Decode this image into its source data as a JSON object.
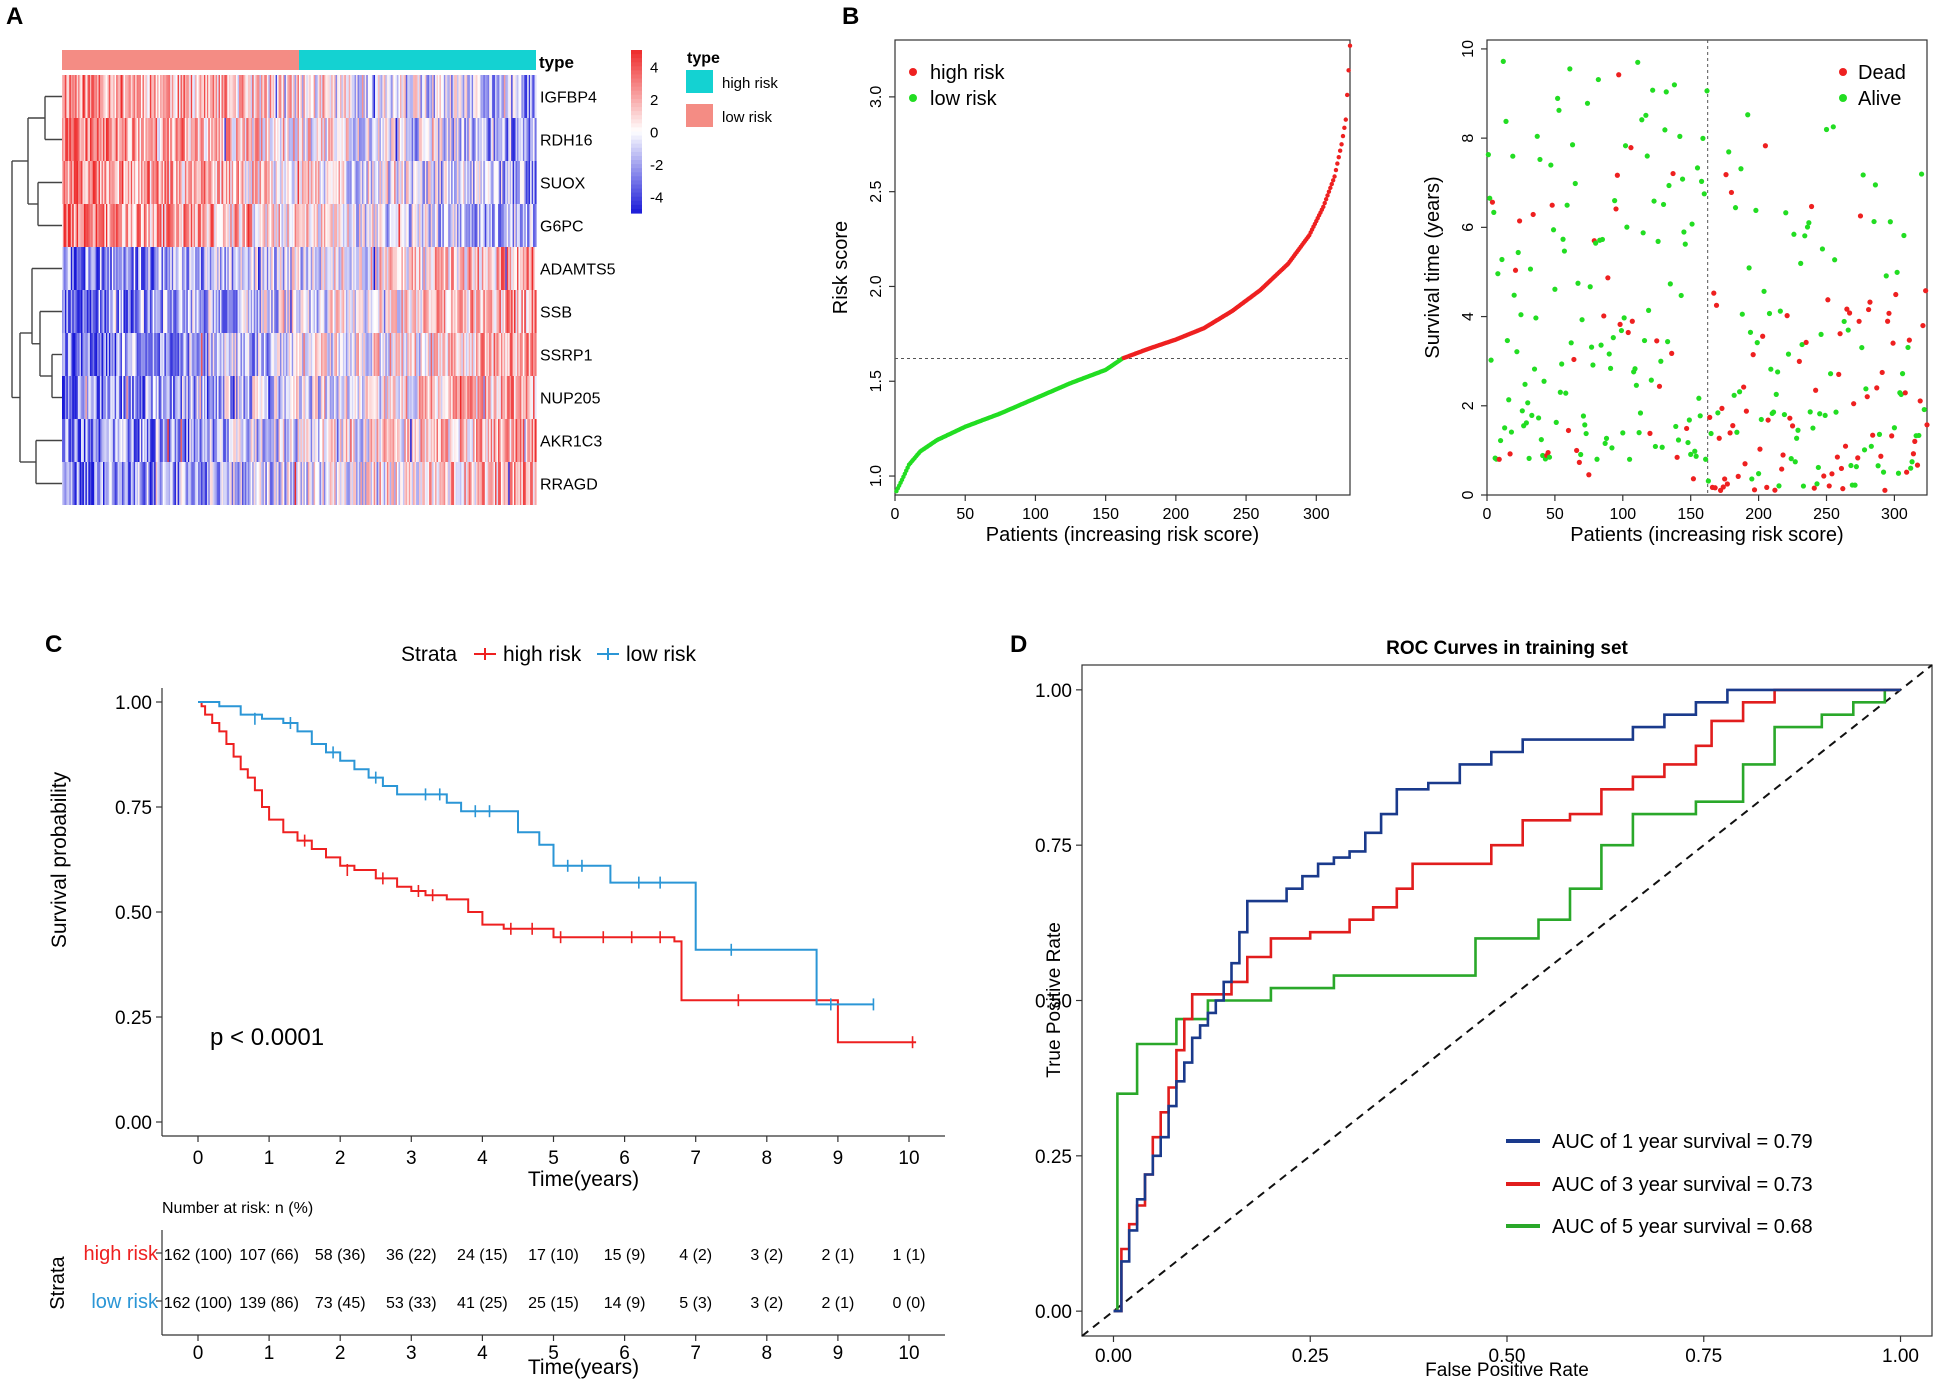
{
  "colors": {
    "high": "#ee2020",
    "low": "#22dd22",
    "kmLow": "#2b96d6",
    "heatHigh": "#ee2a2a",
    "heatLow": "#1a1ad8",
    "typeHigh": "#14d2d2",
    "typeLow": "#f48c84",
    "roc1": "#1a3a8c",
    "roc3": "#e11d1d",
    "roc5": "#2aa82a"
  },
  "chart_data": [
    {
      "panel": "A",
      "type": "heatmap",
      "annotation_label": "type",
      "genes": [
        "IGFBP4",
        "RDH16",
        "SUOX",
        "G6PC",
        "ADAMTS5",
        "SSB",
        "SSRP1",
        "NUP205",
        "AKR1C3",
        "RRAGD"
      ],
      "gene_trend": [
        1,
        1,
        1,
        1,
        -1,
        -1,
        -1,
        -1,
        -1,
        -1
      ],
      "n_low": 162,
      "n_high": 162,
      "colorbar_ticks": [
        "4",
        "2",
        "0",
        "-2",
        "-4"
      ],
      "legend_title": "type",
      "legend_items": [
        "high risk",
        "low risk"
      ]
    },
    {
      "panel": "B1",
      "type": "scatter",
      "legend": [
        "high risk",
        "low risk"
      ],
      "xlabel": "Patients (increasing risk score)",
      "ylabel": "Risk score",
      "xticks": [
        "0",
        "50",
        "100",
        "150",
        "200",
        "250",
        "300"
      ],
      "yticks": [
        "1.0",
        "1.5",
        "2.0",
        "2.5",
        "3.0"
      ],
      "xlim": [
        0,
        324
      ],
      "ylim": [
        0.9,
        3.3
      ],
      "cutoff_index": 162,
      "cutoff_value": 1.62,
      "curve_knots": [
        [
          1,
          0.92
        ],
        [
          5,
          0.98
        ],
        [
          10,
          1.06
        ],
        [
          18,
          1.13
        ],
        [
          30,
          1.19
        ],
        [
          50,
          1.26
        ],
        [
          75,
          1.33
        ],
        [
          100,
          1.41
        ],
        [
          125,
          1.49
        ],
        [
          150,
          1.56
        ],
        [
          162,
          1.62
        ],
        [
          180,
          1.67
        ],
        [
          200,
          1.72
        ],
        [
          220,
          1.78
        ],
        [
          240,
          1.87
        ],
        [
          260,
          1.98
        ],
        [
          280,
          2.12
        ],
        [
          295,
          2.27
        ],
        [
          305,
          2.42
        ],
        [
          313,
          2.58
        ],
        [
          318,
          2.75
        ],
        [
          321,
          2.88
        ],
        [
          324,
          3.27
        ]
      ]
    },
    {
      "panel": "B2",
      "type": "scatter",
      "legend": [
        "Dead",
        "Alive"
      ],
      "xlabel": "Patients (increasing risk score)",
      "ylabel": "Survival time (years)",
      "xticks": [
        "0",
        "50",
        "100",
        "150",
        "200",
        "250",
        "300"
      ],
      "yticks": [
        "0",
        "2",
        "4",
        "6",
        "8",
        "10"
      ],
      "xlim": [
        0,
        324
      ],
      "ylim": [
        0,
        10.2
      ],
      "cutoff_index": 162,
      "dead_ratio_low": 0.2,
      "dead_ratio_high": 0.45
    },
    {
      "panel": "C",
      "type": "line",
      "title": "Strata",
      "legend": [
        "high risk",
        "low risk"
      ],
      "xlabel": "Time(years)",
      "ylabel": "Survival probability",
      "xticks": [
        "0",
        "1",
        "2",
        "3",
        "4",
        "5",
        "6",
        "7",
        "8",
        "9",
        "10"
      ],
      "yticks": [
        "0.00",
        "0.25",
        "0.50",
        "0.75",
        "1.00"
      ],
      "xlim": [
        0,
        10
      ],
      "ylim": [
        0,
        1
      ],
      "pvalue": "p < 0.0001",
      "series": [
        {
          "name": "high risk",
          "steps": [
            [
              0,
              1.0
            ],
            [
              0.05,
              0.99
            ],
            [
              0.1,
              0.97
            ],
            [
              0.2,
              0.95
            ],
            [
              0.3,
              0.93
            ],
            [
              0.4,
              0.9
            ],
            [
              0.5,
              0.87
            ],
            [
              0.6,
              0.84
            ],
            [
              0.7,
              0.82
            ],
            [
              0.8,
              0.79
            ],
            [
              0.9,
              0.75
            ],
            [
              1.0,
              0.72
            ],
            [
              1.2,
              0.69
            ],
            [
              1.4,
              0.67
            ],
            [
              1.6,
              0.65
            ],
            [
              1.8,
              0.63
            ],
            [
              2.0,
              0.61
            ],
            [
              2.2,
              0.6
            ],
            [
              2.5,
              0.58
            ],
            [
              2.8,
              0.56
            ],
            [
              3.0,
              0.55
            ],
            [
              3.2,
              0.54
            ],
            [
              3.5,
              0.53
            ],
            [
              3.8,
              0.5
            ],
            [
              4.0,
              0.47
            ],
            [
              4.3,
              0.46
            ],
            [
              4.6,
              0.46
            ],
            [
              5.0,
              0.44
            ],
            [
              5.5,
              0.44
            ],
            [
              6.0,
              0.44
            ],
            [
              6.4,
              0.44
            ],
            [
              6.7,
              0.43
            ],
            [
              6.8,
              0.29
            ],
            [
              7.5,
              0.29
            ],
            [
              8.5,
              0.29
            ],
            [
              8.9,
              0.29
            ],
            [
              9.0,
              0.19
            ],
            [
              10.1,
              0.19
            ]
          ],
          "censors": [
            [
              1.5,
              0.67
            ],
            [
              2.1,
              0.6
            ],
            [
              2.6,
              0.58
            ],
            [
              3.1,
              0.55
            ],
            [
              3.3,
              0.54
            ],
            [
              4.4,
              0.46
            ],
            [
              4.7,
              0.46
            ],
            [
              5.1,
              0.44
            ],
            [
              5.7,
              0.44
            ],
            [
              6.1,
              0.44
            ],
            [
              6.5,
              0.44
            ],
            [
              7.6,
              0.29
            ],
            [
              10.05,
              0.19
            ]
          ]
        },
        {
          "name": "low risk",
          "steps": [
            [
              0,
              1.0
            ],
            [
              0.3,
              0.99
            ],
            [
              0.6,
              0.97
            ],
            [
              0.9,
              0.96
            ],
            [
              1.2,
              0.95
            ],
            [
              1.4,
              0.93
            ],
            [
              1.6,
              0.9
            ],
            [
              1.8,
              0.88
            ],
            [
              2.0,
              0.86
            ],
            [
              2.2,
              0.84
            ],
            [
              2.4,
              0.82
            ],
            [
              2.6,
              0.8
            ],
            [
              2.8,
              0.78
            ],
            [
              3.0,
              0.78
            ],
            [
              3.5,
              0.76
            ],
            [
              3.7,
              0.74
            ],
            [
              4.2,
              0.74
            ],
            [
              4.5,
              0.69
            ],
            [
              4.8,
              0.66
            ],
            [
              5.0,
              0.61
            ],
            [
              5.5,
              0.61
            ],
            [
              5.8,
              0.57
            ],
            [
              6.9,
              0.57
            ],
            [
              7.0,
              0.41
            ],
            [
              8.0,
              0.41
            ],
            [
              8.6,
              0.41
            ],
            [
              8.7,
              0.28
            ],
            [
              9.5,
              0.28
            ]
          ],
          "censors": [
            [
              0.8,
              0.96
            ],
            [
              1.3,
              0.95
            ],
            [
              1.9,
              0.88
            ],
            [
              2.5,
              0.82
            ],
            [
              3.2,
              0.78
            ],
            [
              3.4,
              0.78
            ],
            [
              3.9,
              0.74
            ],
            [
              4.1,
              0.74
            ],
            [
              5.2,
              0.61
            ],
            [
              5.4,
              0.61
            ],
            [
              6.2,
              0.57
            ],
            [
              6.5,
              0.57
            ],
            [
              7.5,
              0.41
            ],
            [
              8.9,
              0.28
            ],
            [
              9.5,
              0.28
            ]
          ]
        }
      ]
    },
    {
      "panel": "C-risktable",
      "type": "table",
      "title": "Number at risk: n (%)",
      "strata_label": "Strata",
      "xlabel": "Time(years)",
      "xticks": [
        "0",
        "1",
        "2",
        "3",
        "4",
        "5",
        "6",
        "7",
        "8",
        "9",
        "10"
      ],
      "rows": [
        {
          "name": "high risk",
          "values": [
            "162 (100)",
            "107 (66)",
            "58 (36)",
            "36 (22)",
            "24 (15)",
            "17 (10)",
            "15 (9)",
            "4 (2)",
            "3 (2)",
            "2 (1)",
            "1 (1)"
          ]
        },
        {
          "name": "low risk",
          "values": [
            "162 (100)",
            "139 (86)",
            "73 (45)",
            "53 (33)",
            "41 (25)",
            "25 (15)",
            "14 (9)",
            "5 (3)",
            "3 (2)",
            "2 (1)",
            "0 (0)"
          ]
        }
      ]
    },
    {
      "panel": "D",
      "type": "line",
      "title": "ROC Curves in training set",
      "xlabel": "False Positive Rate",
      "ylabel": "True Positive Rate",
      "xticks": [
        "0.00",
        "0.25",
        "0.50",
        "0.75",
        "1.00"
      ],
      "yticks": [
        "0.00",
        "0.25",
        "0.50",
        "0.75",
        "1.00"
      ],
      "xlim": [
        -0.04,
        1.04
      ],
      "ylim": [
        -0.04,
        1.04
      ],
      "series": [
        {
          "name": "AUC of 1 year survival = 0.79",
          "points": [
            [
              0,
              0
            ],
            [
              0.01,
              0.08
            ],
            [
              0.02,
              0.13
            ],
            [
              0.03,
              0.18
            ],
            [
              0.04,
              0.22
            ],
            [
              0.05,
              0.25
            ],
            [
              0.06,
              0.28
            ],
            [
              0.07,
              0.33
            ],
            [
              0.08,
              0.37
            ],
            [
              0.09,
              0.4
            ],
            [
              0.1,
              0.44
            ],
            [
              0.11,
              0.46
            ],
            [
              0.12,
              0.48
            ],
            [
              0.13,
              0.5
            ],
            [
              0.14,
              0.53
            ],
            [
              0.15,
              0.56
            ],
            [
              0.16,
              0.61
            ],
            [
              0.17,
              0.66
            ],
            [
              0.2,
              0.66
            ],
            [
              0.22,
              0.68
            ],
            [
              0.24,
              0.7
            ],
            [
              0.26,
              0.72
            ],
            [
              0.28,
              0.73
            ],
            [
              0.3,
              0.74
            ],
            [
              0.32,
              0.77
            ],
            [
              0.34,
              0.8
            ],
            [
              0.36,
              0.84
            ],
            [
              0.4,
              0.85
            ],
            [
              0.44,
              0.88
            ],
            [
              0.48,
              0.9
            ],
            [
              0.52,
              0.92
            ],
            [
              0.6,
              0.92
            ],
            [
              0.66,
              0.94
            ],
            [
              0.7,
              0.96
            ],
            [
              0.74,
              0.98
            ],
            [
              0.78,
              1.0
            ],
            [
              0.88,
              1.0
            ],
            [
              1.0,
              1.0
            ]
          ]
        },
        {
          "name": "AUC of 3 year survival = 0.73",
          "points": [
            [
              0,
              0
            ],
            [
              0.01,
              0.1
            ],
            [
              0.02,
              0.14
            ],
            [
              0.03,
              0.17
            ],
            [
              0.04,
              0.22
            ],
            [
              0.05,
              0.28
            ],
            [
              0.06,
              0.32
            ],
            [
              0.07,
              0.36
            ],
            [
              0.08,
              0.42
            ],
            [
              0.09,
              0.47
            ],
            [
              0.1,
              0.51
            ],
            [
              0.13,
              0.51
            ],
            [
              0.15,
              0.53
            ],
            [
              0.17,
              0.57
            ],
            [
              0.2,
              0.6
            ],
            [
              0.25,
              0.61
            ],
            [
              0.3,
              0.63
            ],
            [
              0.33,
              0.65
            ],
            [
              0.36,
              0.68
            ],
            [
              0.38,
              0.72
            ],
            [
              0.43,
              0.72
            ],
            [
              0.48,
              0.75
            ],
            [
              0.52,
              0.79
            ],
            [
              0.58,
              0.8
            ],
            [
              0.62,
              0.84
            ],
            [
              0.66,
              0.86
            ],
            [
              0.7,
              0.88
            ],
            [
              0.74,
              0.91
            ],
            [
              0.76,
              0.95
            ],
            [
              0.8,
              0.98
            ],
            [
              0.84,
              1.0
            ],
            [
              1.0,
              1.0
            ]
          ]
        },
        {
          "name": "AUC of 5 year survival = 0.68",
          "points": [
            [
              0,
              0
            ],
            [
              0.005,
              0.35
            ],
            [
              0.02,
              0.35
            ],
            [
              0.03,
              0.43
            ],
            [
              0.07,
              0.43
            ],
            [
              0.08,
              0.47
            ],
            [
              0.1,
              0.47
            ],
            [
              0.12,
              0.5
            ],
            [
              0.2,
              0.52
            ],
            [
              0.28,
              0.54
            ],
            [
              0.42,
              0.54
            ],
            [
              0.46,
              0.6
            ],
            [
              0.54,
              0.63
            ],
            [
              0.58,
              0.68
            ],
            [
              0.62,
              0.75
            ],
            [
              0.66,
              0.8
            ],
            [
              0.74,
              0.82
            ],
            [
              0.8,
              0.88
            ],
            [
              0.84,
              0.94
            ],
            [
              0.9,
              0.96
            ],
            [
              0.94,
              0.98
            ],
            [
              0.98,
              1.0
            ],
            [
              1.0,
              1.0
            ]
          ]
        }
      ]
    }
  ],
  "panels": {
    "a": "A",
    "b": "B",
    "c": "C",
    "d": "D"
  }
}
